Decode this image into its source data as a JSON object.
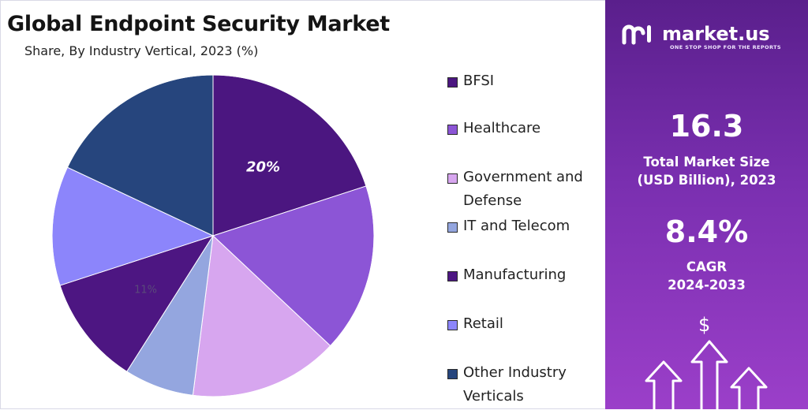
{
  "header": {
    "title": "Global Endpoint Security Market",
    "subtitle": "Share, By Industry Vertical, 2023 (%)"
  },
  "brand": {
    "name": "market.us",
    "tagline": "ONE STOP SHOP FOR THE REPORTS",
    "icon": "market-us-logo-icon",
    "currency_icon": "dollar-sign-icon"
  },
  "stats": {
    "market_size_value": "16.3",
    "market_size_label_line1": "Total Market Size",
    "market_size_label_line2": "(USD Billion), 2023",
    "cagr_value": "8.4%",
    "cagr_label_line1": "CAGR",
    "cagr_label_line2": "2024-2033"
  },
  "colors": {
    "panel_gradient_top": "#5a1f8c",
    "panel_gradient_bottom": "#9b3fc9"
  },
  "chart_data": {
    "type": "pie",
    "title": "Global Endpoint Security Market",
    "subtitle": "Share, By Industry Vertical, 2023 (%)",
    "legend_position": "right",
    "slices": [
      {
        "label": "BFSI",
        "value": 20,
        "data_label": "20%",
        "color": "#4b1680"
      },
      {
        "label": "Healthcare",
        "value": 17,
        "data_label": "",
        "color": "#8c55d6"
      },
      {
        "label": "Government and Defense",
        "value": 15,
        "data_label": "",
        "color": "#d7a6ef"
      },
      {
        "label": "IT and Telecom",
        "value": 7,
        "data_label": "",
        "color": "#94a6df"
      },
      {
        "label": "Manufacturing",
        "value": 11,
        "data_label": "11%",
        "color": "#4d1682"
      },
      {
        "label": "Retail",
        "value": 12,
        "data_label": "",
        "color": "#8c85fb"
      },
      {
        "label": "Other Industry Verticals",
        "value": 18,
        "data_label": "",
        "color": "#26457d"
      }
    ]
  }
}
